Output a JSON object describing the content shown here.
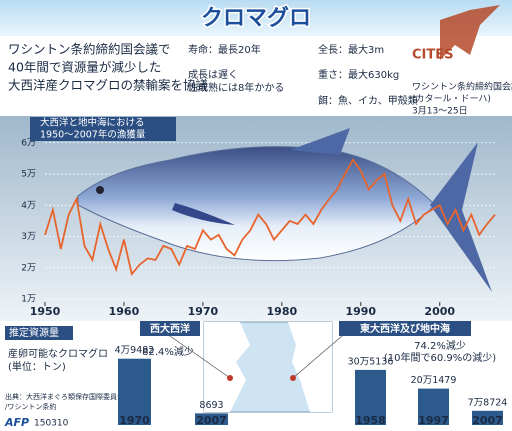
{
  "header": {
    "title": "クロマグロ",
    "lead": [
      "ワシントン条約締約国会議で",
      "40年間で資源量が減少した",
      "大西洋産クロマグロの禁輸案を協議"
    ]
  },
  "info": {
    "col1": [
      "寿命：最長20年",
      "成長は遅く",
      "性成熟には8年かかる"
    ],
    "col2": [
      "全長：最大3m",
      "重さ：最大630kg",
      "餌：魚、イカ、甲殻類"
    ]
  },
  "logo": {
    "mark": "CITES",
    "lines": [
      "ワシントン条約締約国会議",
      "(カタール・ドーハ)",
      "3月13～25日"
    ]
  },
  "stock": {
    "heading": "推定資源量",
    "lines": [
      "産卵可能なクロマグロ",
      "(単位：トン)"
    ]
  },
  "footer": {
    "source": [
      "出典：大西洋まぐろ類保存国際委員会",
      "/ワシントン条約"
    ],
    "agency": "AFP",
    "code": "150310"
  },
  "chart_data": [
    {
      "type": "line",
      "title": [
        "大西洋と地中海における",
        "1950～2007年の漁獲量"
      ],
      "x": [
        1950,
        1951,
        1952,
        1953,
        1954,
        1955,
        1956,
        1957,
        1958,
        1959,
        1960,
        1961,
        1962,
        1963,
        1964,
        1965,
        1966,
        1967,
        1968,
        1969,
        1970,
        1971,
        1972,
        1973,
        1974,
        1975,
        1976,
        1977,
        1978,
        1979,
        1980,
        1981,
        1982,
        1983,
        1984,
        1985,
        1986,
        1987,
        1988,
        1989,
        1990,
        1991,
        1992,
        1993,
        1994,
        1995,
        1996,
        1997,
        1998,
        1999,
        2000,
        2001,
        2002,
        2003,
        2004,
        2005,
        2006,
        2007
      ],
      "series": [
        {
          "color": "#e8642c",
          "values": [
            3.05,
            3.85,
            2.6,
            3.7,
            4.2,
            2.7,
            2.25,
            3.4,
            2.6,
            1.95,
            2.9,
            1.8,
            2.1,
            2.3,
            2.25,
            2.7,
            2.6,
            2.1,
            2.7,
            2.6,
            3.2,
            2.9,
            3.05,
            2.6,
            2.4,
            2.9,
            3.2,
            3.7,
            3.4,
            2.9,
            3.2,
            3.5,
            3.4,
            3.7,
            3.4,
            3.85,
            4.2,
            4.5,
            5.0,
            5.45,
            5.1,
            4.5,
            4.8,
            5.0,
            4.0,
            3.5,
            4.2,
            3.4,
            3.7,
            3.85,
            4.0,
            3.4,
            3.85,
            3.2,
            3.7,
            3.05,
            3.4,
            3.7
          ]
        }
      ],
      "xlim": [
        1950,
        2007
      ],
      "xticks": [
        1950,
        1960,
        1970,
        1980,
        1990,
        2000
      ],
      "ylim": [
        1,
        6.6
      ],
      "yticks": [
        {
          "value": 1,
          "label": "1万"
        },
        {
          "value": 2,
          "label": "2万"
        },
        {
          "value": 3,
          "label": "3万"
        },
        {
          "value": 4,
          "label": "4万"
        },
        {
          "value": 5,
          "label": "5万"
        },
        {
          "value": 6,
          "label": "6万"
        }
      ],
      "grid": true
    },
    {
      "type": "bar",
      "title": "西大西洋",
      "categories": [
        "1970",
        "2007"
      ],
      "values": [
        49482,
        8693
      ],
      "value_labels": [
        "4万9482",
        "8693"
      ],
      "color": "#2d5a8c",
      "ylim": [
        0,
        50000
      ],
      "annotation": [
        "82.4%減少"
      ]
    },
    {
      "type": "bar",
      "title": "東大西洋及び地中海",
      "categories": [
        "1958",
        "1997",
        "2007"
      ],
      "values": [
        305136,
        201479,
        78724
      ],
      "value_labels": [
        "30万5136",
        "20万1479",
        "7万8724"
      ],
      "color": "#2d5a8c",
      "ylim": [
        0,
        310000
      ],
      "annotation": [
        "74.2%減少",
        "(10年間で60.9%の減少)"
      ]
    }
  ]
}
